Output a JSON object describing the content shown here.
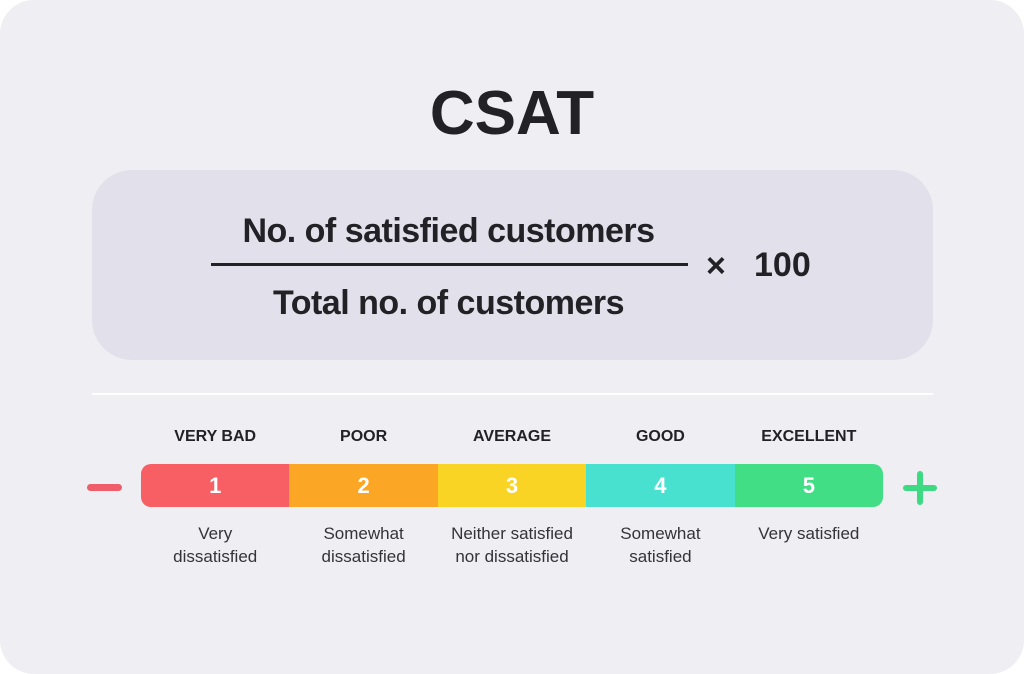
{
  "title": "CSAT",
  "formula": {
    "numerator": "No. of satisfied  customers",
    "denominator": "Total no. of customers",
    "operator": "×",
    "multiplier": "100"
  },
  "scale": {
    "minus_icon": "minus-icon",
    "plus_icon": "plus-icon",
    "levels": [
      {
        "label": "VERY BAD",
        "value": "1",
        "description": "Very\ndissatisfied",
        "color": "#f75f64"
      },
      {
        "label": "POOR",
        "value": "2",
        "description": "Somewhat\ndissatisfied",
        "color": "#fba624"
      },
      {
        "label": "AVERAGE",
        "value": "3",
        "description": "Neither satisfied\nnor dissatisfied",
        "color": "#fad424"
      },
      {
        "label": "GOOD",
        "value": "4",
        "description": "Somewhat\nsatisfied",
        "color": "#48e0cf"
      },
      {
        "label": "EXCELLENT",
        "value": "5",
        "description": "Very satisfied",
        "color": "#42de86"
      }
    ]
  }
}
